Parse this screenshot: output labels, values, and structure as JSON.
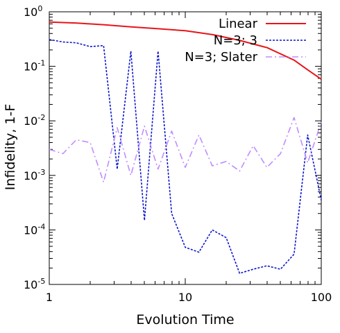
{
  "chart_data": {
    "type": "line",
    "title": "",
    "xlabel": "Evolution Time",
    "ylabel": "Infidelity, 1-F",
    "x_scale": "log",
    "y_scale": "log",
    "xlim": [
      1,
      100
    ],
    "ylim": [
      1e-05,
      1
    ],
    "grid": false,
    "legend_position": "top-right",
    "x_ticks": [
      {
        "value": 1,
        "label": "1"
      },
      {
        "value": 10,
        "label": "10"
      },
      {
        "value": 100,
        "label": "100"
      }
    ],
    "y_ticks": [
      {
        "value": 1,
        "mantissa": "10",
        "exp": "0"
      },
      {
        "value": 0.1,
        "mantissa": "10",
        "exp": "-1"
      },
      {
        "value": 0.01,
        "mantissa": "10",
        "exp": "-2"
      },
      {
        "value": 0.001,
        "mantissa": "10",
        "exp": "-3"
      },
      {
        "value": 0.0001,
        "mantissa": "10",
        "exp": "-4"
      },
      {
        "value": 1e-05,
        "mantissa": "10",
        "exp": "-5"
      }
    ],
    "series": [
      {
        "name": "Linear",
        "color": "#e8141a",
        "dash": "solid",
        "x": [
          1,
          1.6,
          2.5,
          4,
          6.3,
          10,
          16,
          25,
          40,
          63,
          80,
          100
        ],
        "y": [
          0.65,
          0.62,
          0.58,
          0.53,
          0.49,
          0.45,
          0.38,
          0.3,
          0.22,
          0.13,
          0.085,
          0.058
        ]
      },
      {
        "name": "N=3; 3",
        "color": "#0a14cc",
        "dash": "dotted",
        "x": [
          1,
          1.26,
          1.58,
          2.0,
          2.51,
          3.16,
          3.98,
          5.01,
          6.31,
          7.94,
          10.0,
          12.6,
          15.8,
          20.0,
          25.1,
          31.6,
          39.8,
          50.1,
          63.1,
          79.4,
          100
        ],
        "y": [
          0.31,
          0.28,
          0.27,
          0.23,
          0.24,
          0.0013,
          0.19,
          0.00015,
          0.19,
          0.0002,
          4.8e-05,
          3.9e-05,
          0.0001,
          7.2e-05,
          1.6e-05,
          1.9e-05,
          2.2e-05,
          1.9e-05,
          3.6e-05,
          0.0055,
          0.00035
        ]
      },
      {
        "name": "N=3; Slater",
        "color": "#c08cff",
        "dash": "dash-dot",
        "x": [
          1,
          1.26,
          1.58,
          2.0,
          2.51,
          3.16,
          3.98,
          5.01,
          6.31,
          7.94,
          10.0,
          12.6,
          15.8,
          20.0,
          25.1,
          31.6,
          39.8,
          50.1,
          63.1,
          79.4,
          100
        ],
        "y": [
          0.003,
          0.0025,
          0.0045,
          0.004,
          0.00075,
          0.0075,
          0.001,
          0.008,
          0.0013,
          0.0065,
          0.0014,
          0.0055,
          0.0015,
          0.0018,
          0.0012,
          0.0035,
          0.0014,
          0.0025,
          0.0115,
          0.0017,
          0.0095
        ]
      }
    ]
  }
}
